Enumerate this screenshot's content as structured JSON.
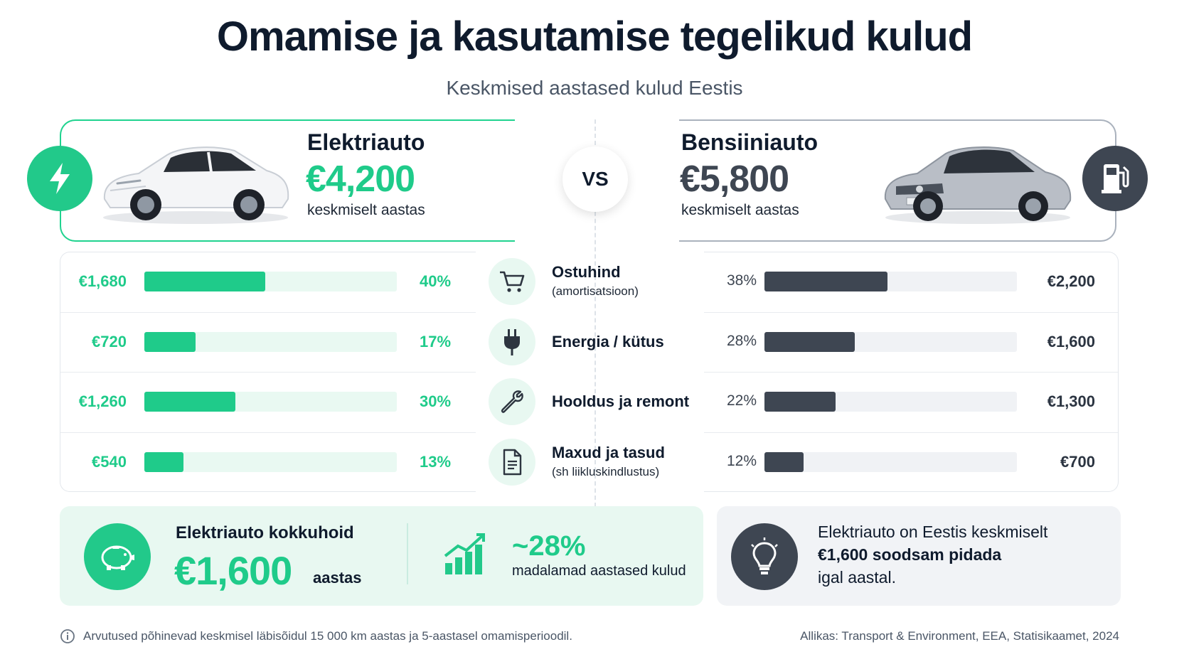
{
  "title": "Omamise ja kasutamise tegelikud kulud",
  "subtitle": "Keskmised aastased kulud Eestis",
  "ev": {
    "name": "Elektriauto",
    "total": "€4,200",
    "total_sub": "keskmiselt aastas",
    "icon": "lightning-icon"
  },
  "gas": {
    "name": "Bensiiniauto",
    "total": "€5,800",
    "total_sub": "keskmiselt aastas",
    "icon": "fuel-pump-icon"
  },
  "vs_label": "VS",
  "colors": {
    "ev_green": "#1fcb8a",
    "gas_dark": "#3e4652"
  },
  "chart_data": {
    "type": "bar",
    "categories": [
      "Ostuhind (amortisatsioon)",
      "Energia / kütus",
      "Hooldus ja remont",
      "Maxud ja tasud (sh liikluskindlustus)"
    ],
    "series": [
      {
        "name": "Elektriauto",
        "values": [
          1680,
          720,
          1260,
          540
        ],
        "labels": [
          "€1,680",
          "€720",
          "€1,260",
          "€540"
        ],
        "shares": [
          "40%",
          "17%",
          "30%",
          "13%"
        ],
        "share_values": [
          40,
          17,
          30,
          13
        ]
      },
      {
        "name": "Bensiiniauto",
        "values": [
          2200,
          1600,
          1300,
          700
        ],
        "labels": [
          "€2,200",
          "€1,600",
          "€1,300",
          "€700"
        ],
        "shares": [
          "38%",
          "28%",
          "22%",
          "12%"
        ],
        "share_values": [
          38,
          28,
          22,
          12
        ]
      }
    ]
  },
  "categories_ui": [
    {
      "title": "Ostuhind",
      "sub": "(amortisatsioon)",
      "icon": "shopping-cart-icon"
    },
    {
      "title": "Energia / kütus",
      "sub": "",
      "icon": "plug-icon"
    },
    {
      "title": "Hooldus ja remont",
      "sub": "",
      "icon": "wrench-icon"
    },
    {
      "title": "Maxud ja tasud",
      "sub": "(sh liikluskindlustus)",
      "icon": "document-icon"
    }
  ],
  "savings": {
    "label": "Elektriauto kokkuhoid",
    "amount": "€1,600",
    "unit": "aastas",
    "pct": "~28%",
    "pct_sub": "madalamad aastased kulud"
  },
  "tip": {
    "line1": "Elektriauto on Eestis keskmiselt",
    "line2": "€1,600 soodsam pidada",
    "line3": "igal aastal."
  },
  "footer": {
    "note": "Arvutused põhinevad keskmisel läbisõidul 15 000 km aastas ja 5-aastasel omamisperioodil.",
    "source": "Allikas: Transport & Environment, EEA, Statisikaamet, 2024"
  }
}
